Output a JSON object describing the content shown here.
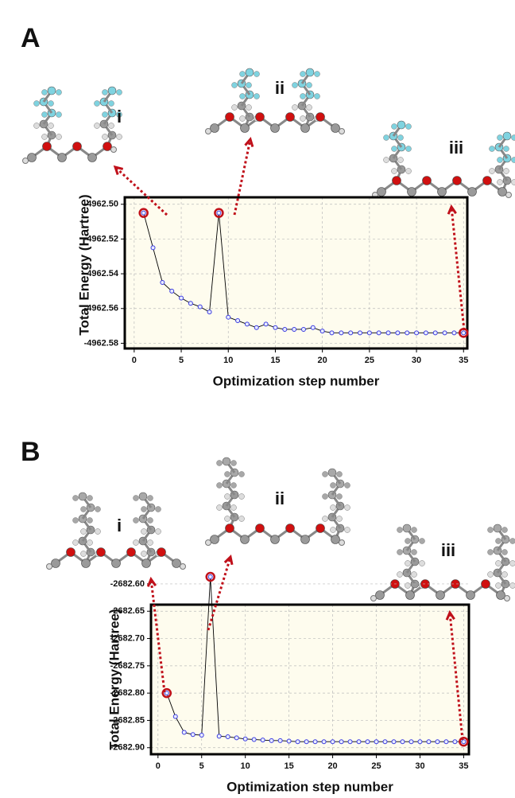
{
  "chart_data": [
    {
      "type": "line",
      "panel_label": "A",
      "molecule_labels": [
        "i",
        "ii",
        "iii"
      ],
      "x_label": "Optimization step number",
      "y_label": "Total Energy (Hartree)",
      "x": [
        1,
        2,
        3,
        4,
        5,
        6,
        7,
        8,
        9,
        10,
        11,
        12,
        13,
        14,
        15,
        16,
        17,
        18,
        19,
        20,
        21,
        22,
        23,
        24,
        25,
        26,
        27,
        28,
        29,
        30,
        31,
        32,
        33,
        34,
        35
      ],
      "series": [
        {
          "color": "#3a3adf",
          "values": [
            -4962.505,
            -4962.525,
            -4962.545,
            -4962.55,
            -4962.554,
            -4962.557,
            -4962.559,
            -4962.562,
            -4962.505,
            -4962.565,
            -4962.567,
            -4962.569,
            -4962.571,
            -4962.569,
            -4962.571,
            -4962.572,
            -4962.572,
            -4962.572,
            -4962.571,
            -4962.573,
            -4962.574,
            -4962.574,
            -4962.574,
            -4962.574,
            -4962.574,
            -4962.574,
            -4962.574,
            -4962.574,
            -4962.574,
            -4962.574,
            -4962.574,
            -4962.574,
            -4962.574,
            -4962.574,
            -4962.574
          ]
        }
      ],
      "highlight_color": "#c0101a",
      "highlight_indices": [
        0,
        8,
        34
      ],
      "xlim": [
        -1,
        35.4
      ],
      "xticks": [
        0,
        5,
        10,
        15,
        20,
        25,
        30,
        35
      ],
      "ylim": [
        -4962.583,
        -4962.496
      ],
      "yticks": [
        {
          "value": -4962.5,
          "label": "-4962.50"
        },
        -4962.52,
        -4962.54,
        -4962.56,
        -4962.58
      ],
      "grid": true
    },
    {
      "type": "line",
      "panel_label": "B",
      "molecule_labels": [
        "i",
        "ii",
        "iii"
      ],
      "x_label": "Optimization step number",
      "y_label": "Total Energy (Hartree)",
      "x": [
        1,
        2,
        3,
        4,
        5,
        6,
        7,
        8,
        9,
        10,
        11,
        12,
        13,
        14,
        15,
        16,
        17,
        18,
        19,
        20,
        21,
        22,
        23,
        24,
        25,
        26,
        27,
        28,
        29,
        30,
        31,
        32,
        33,
        34,
        35
      ],
      "series": [
        {
          "color": "#3a3adf",
          "values": [
            -2682.8,
            -2682.843,
            -2682.872,
            -2682.876,
            -2682.877,
            -2682.587,
            -2682.879,
            -2682.88,
            -2682.882,
            -2682.884,
            -2682.885,
            -2682.886,
            -2682.887,
            -2682.887,
            -2682.888,
            -2682.889,
            -2682.889,
            -2682.889,
            -2682.889,
            -2682.889,
            -2682.889,
            -2682.889,
            -2682.889,
            -2682.889,
            -2682.889,
            -2682.889,
            -2682.889,
            -2682.889,
            -2682.889,
            -2682.889,
            -2682.889,
            -2682.889,
            -2682.889,
            -2682.889,
            -2682.889
          ]
        }
      ],
      "highlight_color": "#c0101a",
      "highlight_indices": [
        0,
        5,
        34
      ],
      "xlim": [
        -0.8,
        35.6
      ],
      "xticks": [
        0,
        5,
        10,
        15,
        20,
        25,
        30,
        35
      ],
      "ylim": [
        -2682.912,
        -2682.638
      ],
      "yticks": [
        -2682.65,
        {
          "value": -2682.6,
          "label": "-2682.60"
        },
        {
          "value": -2682.7,
          "label": "-2682.70"
        },
        -2682.75,
        {
          "value": -2682.8,
          "label": "-2682.80"
        },
        -2682.85,
        {
          "value": -2682.9,
          "label": "-2682.90"
        }
      ],
      "grid": true
    }
  ]
}
